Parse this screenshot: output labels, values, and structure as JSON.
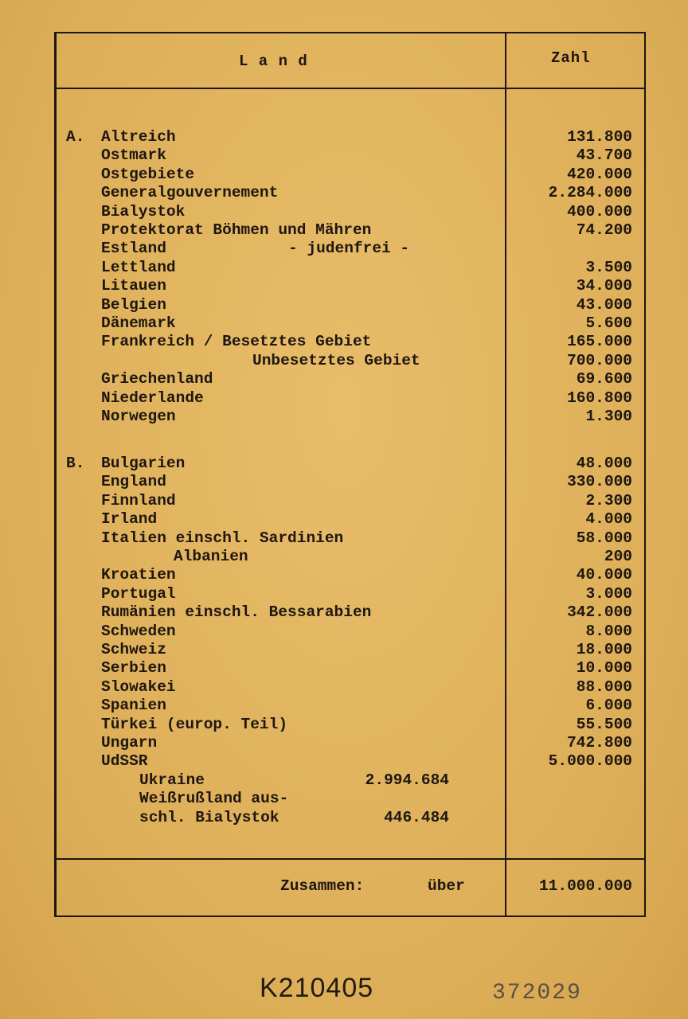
{
  "header": {
    "land": "L a n d",
    "zahl": "Zahl"
  },
  "section_a": {
    "letter": "A.",
    "rows": [
      {
        "label": "Altreich",
        "value": "131.800"
      },
      {
        "label": "Ostmark",
        "value": "43.700"
      },
      {
        "label": "Ostgebiete",
        "value": "420.000"
      },
      {
        "label": "Generalgouvernement",
        "value": "2.284.000"
      },
      {
        "label": "Bialystok",
        "value": "400.000"
      },
      {
        "label": "Protektorat Böhmen und Mähren",
        "value": "74.200"
      },
      {
        "label": "Estland",
        "note": "- judenfrei -",
        "value": ""
      },
      {
        "label": "Lettland",
        "value": "3.500"
      },
      {
        "label": "Litauen",
        "value": "34.000"
      },
      {
        "label": "Belgien",
        "value": "43.000"
      },
      {
        "label": "Dänemark",
        "value": "5.600"
      },
      {
        "label": "Frankreich / Besetztes Gebiet",
        "value": "165.000"
      },
      {
        "label": "Unbesetztes Gebiet",
        "indent": 2,
        "value": "700.000"
      },
      {
        "label": "Griechenland",
        "value": "69.600"
      },
      {
        "label": "Niederlande",
        "value": "160.800"
      },
      {
        "label": "Norwegen",
        "value": "1.300"
      }
    ]
  },
  "section_b": {
    "letter": "B.",
    "rows": [
      {
        "label": "Bulgarien",
        "value": "48.000"
      },
      {
        "label": "England",
        "value": "330.000"
      },
      {
        "label": "Finnland",
        "value": "2.300"
      },
      {
        "label": "Irland",
        "value": "4.000"
      },
      {
        "label": "Italien einschl. Sardinien",
        "value": "58.000"
      },
      {
        "label": "Albanien",
        "indent": 1,
        "value": "200"
      },
      {
        "label": "Kroatien",
        "value": "40.000"
      },
      {
        "label": "Portugal",
        "value": "3.000"
      },
      {
        "label": "Rumänien einschl. Bessarabien",
        "value": "342.000"
      },
      {
        "label": "Schweden",
        "value": "8.000"
      },
      {
        "label": "Schweiz",
        "value": "18.000"
      },
      {
        "label": "Serbien",
        "value": "10.000"
      },
      {
        "label": "Slowakei",
        "value": "88.000"
      },
      {
        "label": "Spanien",
        "value": "6.000"
      },
      {
        "label": "Türkei (europ. Teil)",
        "value": "55.500"
      },
      {
        "label": "Ungarn",
        "value": "742.800"
      },
      {
        "label": "UdSSR",
        "value": "5.000.000"
      },
      {
        "label": "Ukraine",
        "indent": 3,
        "sub_value": "2.994.684",
        "value": ""
      },
      {
        "label": "Weißrußland aus-",
        "indent": 3,
        "value": ""
      },
      {
        "label": "schl. Bialystok",
        "indent": 3,
        "sub_value": "446.484",
        "value": ""
      }
    ]
  },
  "footer": {
    "label": "Zusammen:",
    "qualifier": "über",
    "total": "11.000.000"
  },
  "stamps": {
    "archive_number": "K210405",
    "page_number": "372029"
  }
}
